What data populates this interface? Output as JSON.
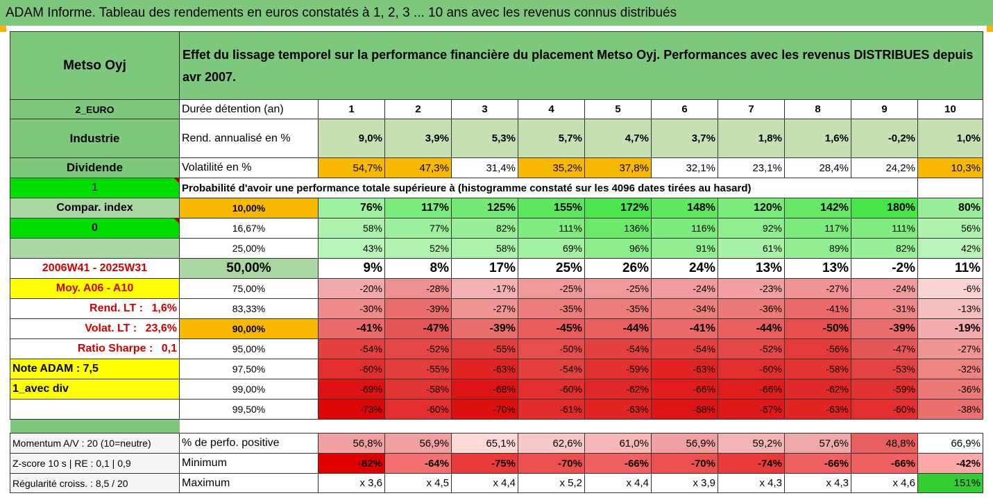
{
  "title": "ADAM Informe. Tableau des rendements en euros constatés à 1, 2, 3 ... 10 ans avec les revenus connus distribués",
  "company": "Metso Oyj",
  "headline": "Effet du lissage temporel sur la performance financière du placement Metso Oyj. Performances avec les revenus DISTRIBUES depuis avr 2007.",
  "left": {
    "currency": "2_EURO",
    "sector": "Industrie",
    "dividend_label": "Dividende",
    "dividend_value": "1",
    "compar_label": "Compar. index",
    "compar_value": "0",
    "period": "2006W41 - 2025W31",
    "moy": "Moy. A06 - A10",
    "rend_lt_label": "Rend. LT :",
    "rend_lt_value": "1,6%",
    "volat_lt_label": "Volat. LT :",
    "volat_lt_value": "23,6%",
    "sharpe_label": "Ratio Sharpe :",
    "sharpe_value": "0,1",
    "note": "Note ADAM : 7,5",
    "avec_div": "1_avec div",
    "momentum": "Momentum A/V : 20 (10=neutre)",
    "zscore": "Z-score 10 s  |  RE : 0,1  |  0,9",
    "regularite": "Régularité croiss. : 8,5 / 20"
  },
  "duration_label": "Durée détention (an)",
  "years": [
    "1",
    "2",
    "3",
    "4",
    "5",
    "6",
    "7",
    "8",
    "9",
    "10"
  ],
  "rend_label": "Rend. annualisé en %",
  "rend": [
    "9,0%",
    "3,9%",
    "5,3%",
    "5,7%",
    "4,7%",
    "3,7%",
    "1,8%",
    "1,6%",
    "-0,2%",
    "1,0%"
  ],
  "vol_label": "Volatilité en %",
  "vol": [
    "54,7%",
    "47,3%",
    "31,4%",
    "35,2%",
    "37,8%",
    "32,1%",
    "23,1%",
    "28,4%",
    "24,2%",
    "10,3%"
  ],
  "prob_label": "Probabilité d'avoir une performance totale supérieure à (histogramme constaté sur les 4096 dates tirées au hasard)",
  "percentiles": [
    {
      "p": "10,00%",
      "v": [
        "76%",
        "117%",
        "125%",
        "155%",
        "172%",
        "148%",
        "120%",
        "142%",
        "180%",
        "80%"
      ]
    },
    {
      "p": "16,67%",
      "v": [
        "58%",
        "77%",
        "82%",
        "111%",
        "136%",
        "116%",
        "92%",
        "117%",
        "111%",
        "56%"
      ]
    },
    {
      "p": "25,00%",
      "v": [
        "43%",
        "52%",
        "58%",
        "69%",
        "96%",
        "91%",
        "61%",
        "89%",
        "82%",
        "42%"
      ]
    },
    {
      "p": "50,00%",
      "v": [
        "9%",
        "8%",
        "17%",
        "25%",
        "26%",
        "24%",
        "13%",
        "13%",
        "-2%",
        "11%"
      ]
    },
    {
      "p": "75,00%",
      "v": [
        "-20%",
        "-28%",
        "-17%",
        "-25%",
        "-25%",
        "-24%",
        "-23%",
        "-27%",
        "-24%",
        "-6%"
      ]
    },
    {
      "p": "83,33%",
      "v": [
        "-30%",
        "-39%",
        "-27%",
        "-35%",
        "-35%",
        "-34%",
        "-36%",
        "-41%",
        "-31%",
        "-13%"
      ]
    },
    {
      "p": "90,00%",
      "v": [
        "-41%",
        "-47%",
        "-39%",
        "-45%",
        "-44%",
        "-41%",
        "-44%",
        "-50%",
        "-39%",
        "-19%"
      ]
    },
    {
      "p": "95,00%",
      "v": [
        "-54%",
        "-52%",
        "-55%",
        "-50%",
        "-54%",
        "-54%",
        "-52%",
        "-56%",
        "-47%",
        "-27%"
      ]
    },
    {
      "p": "97,50%",
      "v": [
        "-60%",
        "-55%",
        "-63%",
        "-54%",
        "-59%",
        "-63%",
        "-60%",
        "-58%",
        "-53%",
        "-32%"
      ]
    },
    {
      "p": "99,00%",
      "v": [
        "-69%",
        "-58%",
        "-68%",
        "-60%",
        "-62%",
        "-66%",
        "-66%",
        "-62%",
        "-59%",
        "-36%"
      ]
    },
    {
      "p": "99,50%",
      "v": [
        "-73%",
        "-60%",
        "-70%",
        "-61%",
        "-63%",
        "-68%",
        "-67%",
        "-63%",
        "-60%",
        "-38%"
      ]
    }
  ],
  "pos_label": "% de perfo. positive",
  "pos": [
    "56,8%",
    "56,9%",
    "65,1%",
    "62,6%",
    "61,0%",
    "56,9%",
    "59,2%",
    "57,6%",
    "48,8%",
    "66,9%"
  ],
  "min_label": "Minimum",
  "min": [
    "-82%",
    "-64%",
    "-75%",
    "-70%",
    "-66%",
    "-70%",
    "-74%",
    "-66%",
    "-66%",
    "-42%"
  ],
  "max_label": "Maximum",
  "max": [
    "x 3,6",
    "x 4,5",
    "x 4,4",
    "x 5,2",
    "x 4,4",
    "x 3,9",
    "x 4,3",
    "x 4,3",
    "x 4,6",
    "151%"
  ],
  "colors": {
    "banner": "#7ec87e",
    "rend": [
      "#c6e0b4",
      "#c6e0b4",
      "#c6e0b4",
      "#c6e0b4",
      "#c6e0b4",
      "#c6e0b4",
      "#c6e0b4",
      "#c6e0b4",
      "#c6e0b4",
      "#c6e0b4"
    ],
    "vol": [
      "#f8b800",
      "#f8b800",
      "#ffffff",
      "#f8b800",
      "#f8b800",
      "#ffffff",
      "#ffffff",
      "#ffffff",
      "#ffffff",
      "#f8b800"
    ],
    "pos": [
      "#f0a0a0",
      "#f0a0a0",
      "#ffd8d8",
      "#f8c8c8",
      "#f8b8b8",
      "#f0a0a0",
      "#f4b4b4",
      "#f0a8a8",
      "#e86060",
      "#ffffff"
    ],
    "min": [
      "#e00000",
      "#f47070",
      "#ea3a3a",
      "#ee5050",
      "#f06060",
      "#ee5050",
      "#ea3a3a",
      "#f06060",
      "#f06060",
      "#ffa8a8"
    ],
    "max_last": "#33cc33"
  }
}
